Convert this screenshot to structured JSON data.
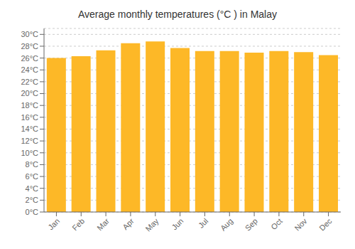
{
  "chart_data": {
    "type": "bar",
    "title": "Average monthly temperatures (°C ) in Malay",
    "categories": [
      "Jan",
      "Feb",
      "Mar",
      "Apr",
      "May",
      "Jun",
      "Jul",
      "Aug",
      "Sep",
      "Oct",
      "Nov",
      "Dec"
    ],
    "values": [
      26.0,
      26.3,
      27.3,
      28.5,
      28.8,
      27.7,
      27.2,
      27.2,
      26.9,
      27.2,
      27.0,
      26.5
    ],
    "color": "#FDB827",
    "ylim": [
      0,
      31
    ],
    "yticks": [
      {
        "value": 0,
        "label": "0°C"
      },
      {
        "value": 2,
        "label": "2°C"
      },
      {
        "value": 4,
        "label": "4°C"
      },
      {
        "value": 6,
        "label": "6°C"
      },
      {
        "value": 8,
        "label": "8°C"
      },
      {
        "value": 10,
        "label": "10°C"
      },
      {
        "value": 12,
        "label": "12°C"
      },
      {
        "value": 14,
        "label": "14°C"
      },
      {
        "value": 16,
        "label": "16°C"
      },
      {
        "value": 18,
        "label": "18°C"
      },
      {
        "value": 20,
        "label": "20°C"
      },
      {
        "value": 22,
        "label": "22°C"
      },
      {
        "value": 24,
        "label": "24°C"
      },
      {
        "value": 26,
        "label": "26°C"
      },
      {
        "value": 28,
        "label": "28°C"
      },
      {
        "value": 30,
        "label": "30°C"
      }
    ],
    "grid": true
  }
}
